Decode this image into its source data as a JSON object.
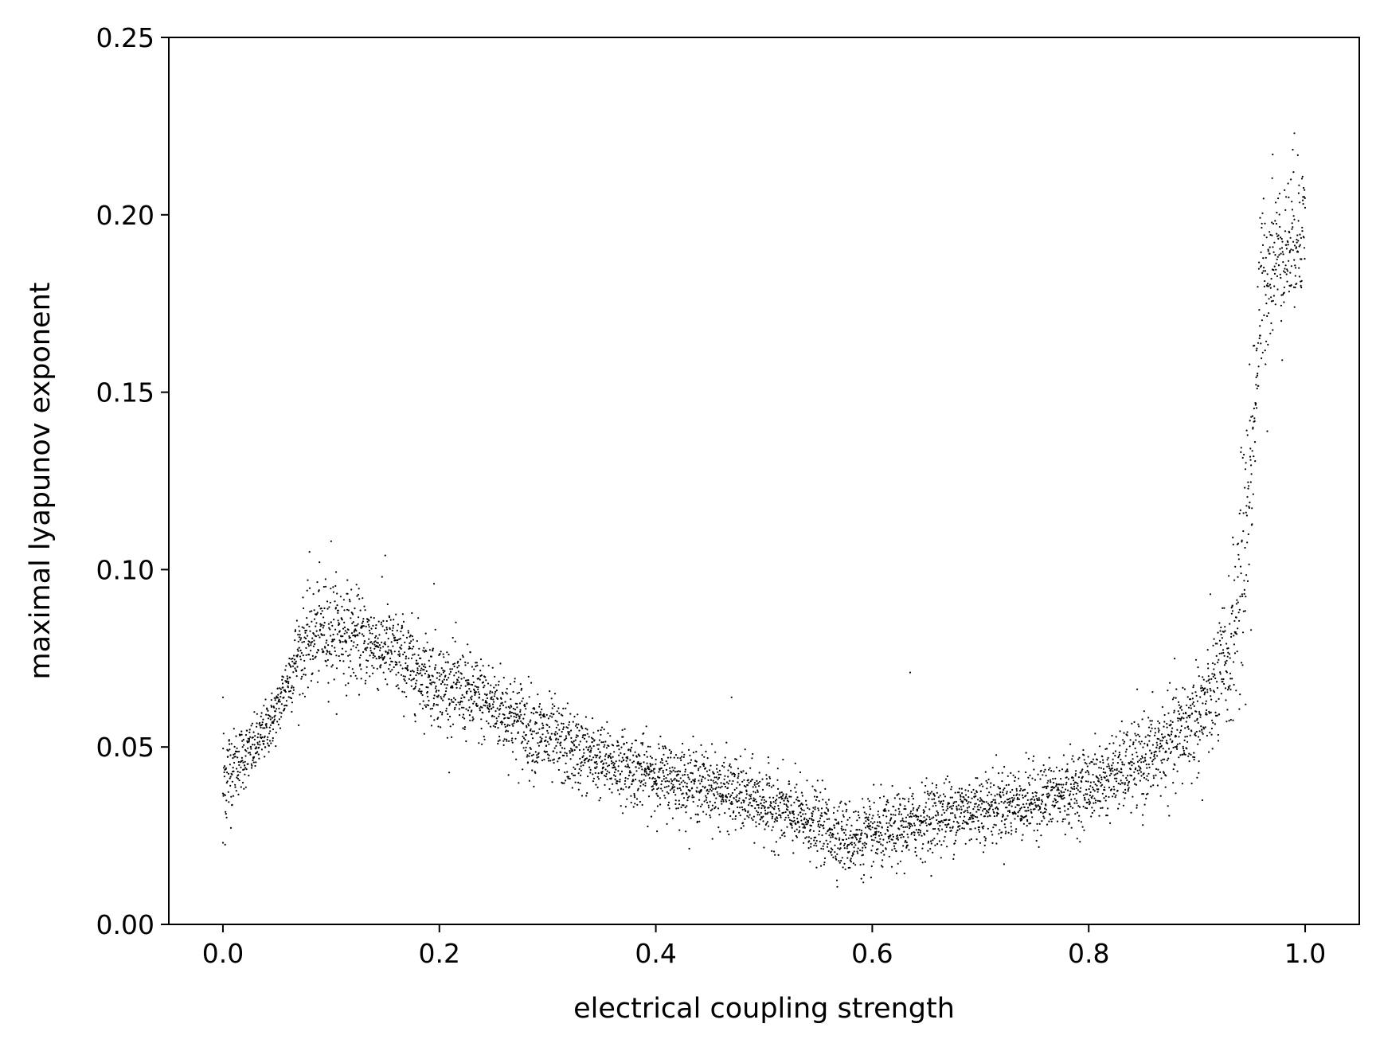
{
  "chart_data": {
    "type": "scatter",
    "title": "",
    "xlabel": "electrical coupling strength",
    "ylabel": "maximal lyapunov exponent",
    "xlim": [
      -0.05,
      1.05
    ],
    "ylim": [
      0.0,
      0.25
    ],
    "xticks": [
      0.0,
      0.2,
      0.4,
      0.6,
      0.8,
      1.0
    ],
    "xtick_labels": [
      "0.0",
      "0.2",
      "0.4",
      "0.6",
      "0.8",
      "1.0"
    ],
    "yticks": [
      0.0,
      0.05,
      0.1,
      0.15,
      0.2,
      0.25
    ],
    "ytick_labels": [
      "0.00",
      "0.05",
      "0.10",
      "0.15",
      "0.20",
      "0.25"
    ],
    "grid": false,
    "legend": "none",
    "marker_color": "#000000",
    "trend": {
      "x": [
        0.0,
        0.01,
        0.03,
        0.05,
        0.07,
        0.09,
        0.11,
        0.13,
        0.15,
        0.17,
        0.2,
        0.25,
        0.3,
        0.35,
        0.4,
        0.45,
        0.5,
        0.55,
        0.58,
        0.62,
        0.65,
        0.7,
        0.75,
        0.8,
        0.85,
        0.88,
        0.91,
        0.93,
        0.94,
        0.95,
        0.96,
        0.97,
        0.98,
        0.99,
        1.0
      ],
      "y": [
        0.04,
        0.045,
        0.05,
        0.06,
        0.077,
        0.083,
        0.083,
        0.08,
        0.078,
        0.074,
        0.068,
        0.062,
        0.052,
        0.046,
        0.042,
        0.039,
        0.034,
        0.028,
        0.024,
        0.026,
        0.03,
        0.033,
        0.035,
        0.039,
        0.046,
        0.052,
        0.062,
        0.075,
        0.095,
        0.13,
        0.18,
        0.188,
        0.19,
        0.193,
        0.2
      ],
      "spread": [
        0.01,
        0.005,
        0.004,
        0.004,
        0.006,
        0.007,
        0.007,
        0.006,
        0.006,
        0.006,
        0.006,
        0.006,
        0.006,
        0.005,
        0.005,
        0.005,
        0.005,
        0.005,
        0.005,
        0.005,
        0.005,
        0.005,
        0.005,
        0.005,
        0.006,
        0.007,
        0.008,
        0.01,
        0.015,
        0.015,
        0.012,
        0.01,
        0.01,
        0.01,
        0.01
      ],
      "n_points": 5000
    },
    "outliers": [
      {
        "x": 0.0,
        "y": 0.023
      },
      {
        "x": 0.0,
        "y": 0.064
      },
      {
        "x": 0.1,
        "y": 0.108
      },
      {
        "x": 0.08,
        "y": 0.105
      },
      {
        "x": 0.15,
        "y": 0.104
      },
      {
        "x": 0.195,
        "y": 0.096
      },
      {
        "x": 0.635,
        "y": 0.071
      },
      {
        "x": 0.965,
        "y": 0.139
      },
      {
        "x": 0.99,
        "y": 0.223
      },
      {
        "x": 0.97,
        "y": 0.217
      },
      {
        "x": 0.95,
        "y": 0.083
      },
      {
        "x": 0.945,
        "y": 0.062
      },
      {
        "x": 0.905,
        "y": 0.035
      },
      {
        "x": 0.47,
        "y": 0.064
      },
      {
        "x": 0.85,
        "y": 0.028
      }
    ]
  }
}
